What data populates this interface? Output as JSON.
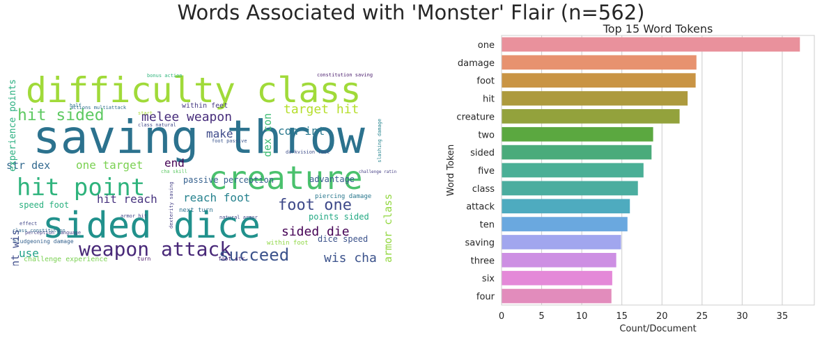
{
  "figure": {
    "title": "Words Associated with 'Monster' Flair (n=562)"
  },
  "wordcloud": {
    "words": [
      {
        "text": "difficulty class",
        "color": "#a0da39",
        "size": 50
      },
      {
        "text": "saving throw",
        "color": "#2c728e",
        "size": 66
      },
      {
        "text": "creature",
        "color": "#4ac16d",
        "size": 46
      },
      {
        "text": "hit point",
        "color": "#2eb37c",
        "size": 34
      },
      {
        "text": "sided dice",
        "color": "#21918c",
        "size": 52
      },
      {
        "text": "weapon attack",
        "color": "#482878",
        "size": 28
      },
      {
        "text": "succeed",
        "color": "#3b528b",
        "size": 24
      },
      {
        "text": "hit sided",
        "color": "#5ec962",
        "size": 23
      },
      {
        "text": "melee weapon",
        "color": "#472d7b",
        "size": 18
      },
      {
        "text": "target hit",
        "color": "#b5de2b",
        "size": 18
      },
      {
        "text": "foot one",
        "color": "#3e4989",
        "size": 22
      },
      {
        "text": "sided die",
        "color": "#440154",
        "size": 18
      },
      {
        "text": "wis cha",
        "color": "#3b528b",
        "size": 18
      },
      {
        "text": "str dex",
        "color": "#31688e",
        "size": 15
      },
      {
        "text": "one target",
        "color": "#7ad151",
        "size": 16
      },
      {
        "text": "hit reach",
        "color": "#46327e",
        "size": 16
      },
      {
        "text": "reach foot",
        "color": "#26828e",
        "size": 16
      },
      {
        "text": "make",
        "color": "#3e4a89",
        "size": 16
      },
      {
        "text": "end",
        "color": "#440154",
        "size": 16
      },
      {
        "text": "con int",
        "color": "#2a788e",
        "size": 16
      },
      {
        "text": "use",
        "color": "#1fa187",
        "size": 16
      },
      {
        "text": "passive perception",
        "color": "#35608d",
        "size": 12
      },
      {
        "text": "advantage",
        "color": "#365c8d",
        "size": 12
      },
      {
        "text": "points sided",
        "color": "#23a983",
        "size": 12
      },
      {
        "text": "dice speed",
        "color": "#3b528b",
        "size": 12
      },
      {
        "text": "speed foot",
        "color": "#2ab07f",
        "size": 12
      },
      {
        "text": "within feet",
        "color": "#453882",
        "size": 10
      },
      {
        "text": "challenge experience",
        "color": "#7ad151",
        "size": 10
      },
      {
        "text": "bludgeoning damage",
        "color": "#34618d",
        "size": 8
      },
      {
        "text": "next turn",
        "color": "#2c728e",
        "size": 9
      },
      {
        "text": "piercing damage",
        "color": "#2a788e",
        "size": 9
      },
      {
        "text": "within foot",
        "color": "#8fd744",
        "size": 9
      },
      {
        "text": "foot str",
        "color": "#482475",
        "size": 8
      },
      {
        "text": "turn",
        "color": "#471164",
        "size": 8
      },
      {
        "text": "constitution saving",
        "color": "#481a6c",
        "size": 7
      },
      {
        "text": "bonus action",
        "color": "#2fb47c",
        "size": 7
      },
      {
        "text": "actions multiattack",
        "color": "#2e6e8e",
        "size": 7
      },
      {
        "text": "class natural",
        "color": "#3f4788",
        "size": 7
      },
      {
        "text": "perception language",
        "color": "#433e85",
        "size": 7
      },
      {
        "text": "effect",
        "color": "#404688",
        "size": 7
      },
      {
        "text": "class constitution",
        "color": "#306a8e",
        "size": 7
      },
      {
        "text": "armor hit",
        "color": "#414487",
        "size": 7
      },
      {
        "text": "foot passive",
        "color": "#3a548c",
        "size": 7
      },
      {
        "text": "challenge rating",
        "color": "#433d84",
        "size": 6
      },
      {
        "text": "darkvision foot",
        "color": "#3d4d8a",
        "size": 7
      },
      {
        "text": "natural armor",
        "color": "#404688",
        "size": 7
      },
      {
        "text": "start",
        "color": "#a8db34",
        "size": 7
      },
      {
        "text": "half",
        "color": "#2c738e",
        "size": 7
      },
      {
        "text": "cha skill",
        "color": "#5cc863",
        "size": 7
      },
      {
        "text": "experience points",
        "color": "#29af7f",
        "size": 13
      },
      {
        "text": "dex con",
        "color": "#3dbc74",
        "size": 15
      },
      {
        "text": "armor class",
        "color": "#93d741",
        "size": 15
      },
      {
        "text": "int wis",
        "color": "#3e4c8a",
        "size": 15
      },
      {
        "text": "slashing damage",
        "color": "#25848e",
        "size": 7
      },
      {
        "text": "dexterity saving",
        "color": "#433e85",
        "size": 7
      }
    ]
  },
  "chart_data": {
    "type": "bar",
    "orientation": "horizontal",
    "title": "Top 15 Word Tokens",
    "xlabel": "Count/Document",
    "ylabel": "Word Token",
    "xlim": [
      0,
      39
    ],
    "xticks": [
      "0",
      "5",
      "10",
      "15",
      "20",
      "25",
      "30",
      "35"
    ],
    "grid": true,
    "categories": [
      "one",
      "damage",
      "foot",
      "hit",
      "creature",
      "two",
      "sided",
      "five",
      "class",
      "attack",
      "ten",
      "saving",
      "three",
      "six",
      "four"
    ],
    "values": [
      37.2,
      24.3,
      24.2,
      23.2,
      22.2,
      18.9,
      18.7,
      17.7,
      17.0,
      16.0,
      15.7,
      14.9,
      14.3,
      13.8,
      13.7
    ],
    "colors": [
      "#e9919c",
      "#e7926f",
      "#c99444",
      "#ad9a3e",
      "#93a23c",
      "#5ba840",
      "#4aab7b",
      "#4aaf96",
      "#4bad9f",
      "#4eabbf",
      "#6aa8df",
      "#a1a6ee",
      "#cd8fe3",
      "#e489d8",
      "#e28cbc"
    ]
  }
}
